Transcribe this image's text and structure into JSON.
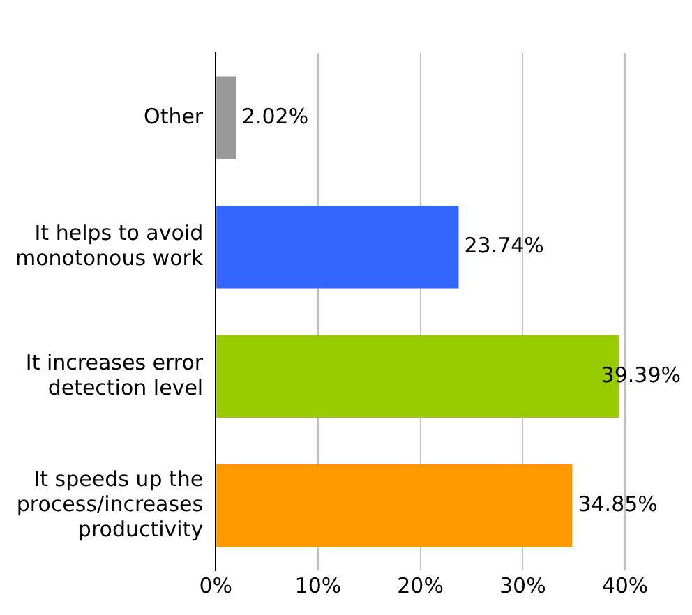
{
  "chart_data": {
    "type": "bar",
    "orientation": "horizontal",
    "categories": [
      "Other",
      "It helps to avoid\nmonotonous work",
      "It increases error\ndetection level",
      "It speeds up the\nprocess/increases\nproductivity"
    ],
    "values": [
      2.02,
      23.74,
      39.39,
      34.85
    ],
    "colors": [
      "#999999",
      "#3366ff",
      "#99cc00",
      "#ff9900"
    ],
    "value_labels": [
      "2.02%",
      "23.74%",
      "39.39%",
      "34.85%"
    ],
    "xlim": [
      0,
      40
    ],
    "xticks": [
      {
        "value": 0,
        "label": "0%"
      },
      {
        "value": 10,
        "label": "10%"
      },
      {
        "value": 20,
        "label": "20%"
      },
      {
        "value": 30,
        "label": "30%"
      },
      {
        "value": 40,
        "label": "40%"
      }
    ],
    "grid": "x"
  }
}
